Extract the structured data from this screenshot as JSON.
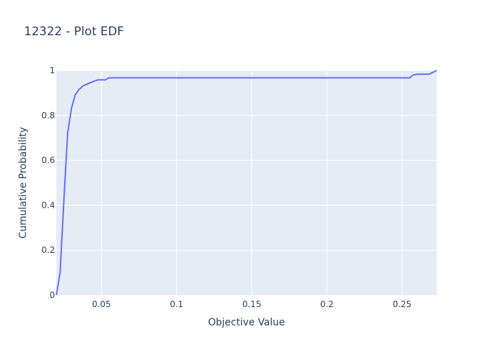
{
  "chart_data": {
    "type": "line",
    "title": "12322 - Plot EDF",
    "xlabel": "Objective Value",
    "ylabel": "Cumulative Probability",
    "xlim": [
      0.02,
      0.273
    ],
    "ylim": [
      0,
      1
    ],
    "grid": true,
    "x_ticks": [
      {
        "value": 0.05,
        "label": "0.05"
      },
      {
        "value": 0.1,
        "label": "0.1"
      },
      {
        "value": 0.15,
        "label": "0.15"
      },
      {
        "value": 0.2,
        "label": "0.2"
      },
      {
        "value": 0.25,
        "label": "0.25"
      }
    ],
    "y_ticks": [
      {
        "value": 0,
        "label": "0"
      },
      {
        "value": 0.2,
        "label": "0.2"
      },
      {
        "value": 0.4,
        "label": "0.4"
      },
      {
        "value": 0.6,
        "label": "0.6"
      },
      {
        "value": 0.8,
        "label": "0.8"
      },
      {
        "value": 1,
        "label": "1"
      }
    ],
    "series": [
      {
        "color": "#636efa",
        "x": [
          0.02,
          0.0225,
          0.025,
          0.0275,
          0.03,
          0.0325,
          0.035,
          0.0375,
          0.04,
          0.0425,
          0.045,
          0.0475,
          0.05,
          0.0525,
          0.055,
          0.06,
          0.1,
          0.15,
          0.2,
          0.25,
          0.255,
          0.2575,
          0.26,
          0.265,
          0.268,
          0.273
        ],
        "y": [
          0.0,
          0.1,
          0.42,
          0.72,
          0.83,
          0.89,
          0.915,
          0.93,
          0.938,
          0.945,
          0.952,
          0.958,
          0.958,
          0.958,
          0.967,
          0.967,
          0.967,
          0.967,
          0.967,
          0.967,
          0.967,
          0.98,
          0.983,
          0.983,
          0.983,
          1.0
        ]
      }
    ]
  },
  "colors": {
    "plot_background": "#e5ecf6",
    "grid": "#ffffff",
    "title_text": "#2a3f5f",
    "tick_text": "#2a3f5f"
  }
}
